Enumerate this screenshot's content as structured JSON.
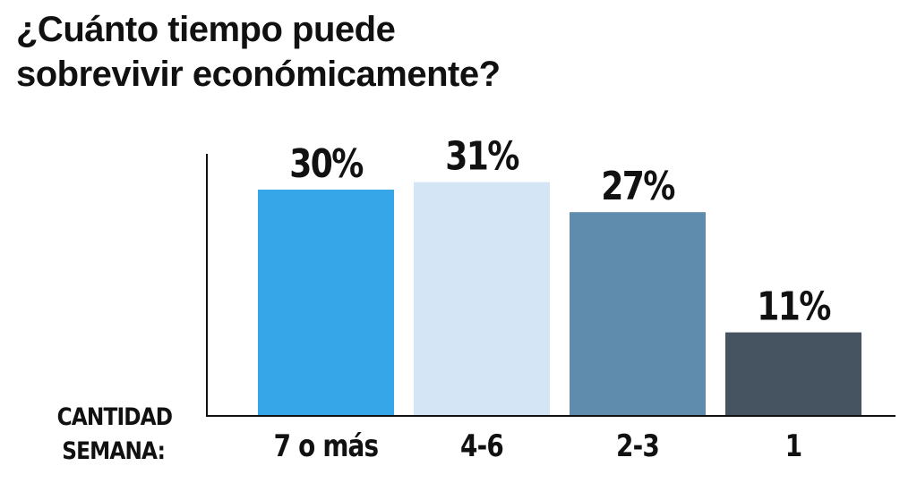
{
  "title": {
    "line1": "¿Cuánto tiempo puede",
    "line2": "sobrevivir económicamente?"
  },
  "axis_label": {
    "line1": "CANTIDAD",
    "line2": "SEMANA:"
  },
  "chart_data": {
    "type": "bar",
    "title": "¿Cuánto tiempo puede sobrevivir económicamente?",
    "xlabel": "CANTIDAD SEMANA:",
    "ylabel": "",
    "categories": [
      "7 o más",
      "4-6",
      "2-3",
      "1"
    ],
    "values": [
      30,
      31,
      27,
      11
    ],
    "value_labels": [
      "30%",
      "31%",
      "27%",
      "11%"
    ],
    "colors": [
      "#37a6e8",
      "#d4e5f6",
      "#5f8bad",
      "#465461"
    ],
    "ylim": [
      0,
      36
    ],
    "grid": false,
    "legend": "none"
  }
}
